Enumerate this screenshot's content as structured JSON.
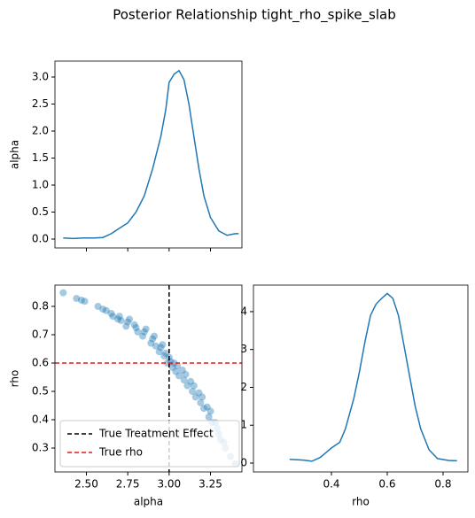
{
  "title": "Posterior Relationship tight_rho_spike_slab",
  "chart_data": [
    {
      "type": "line",
      "ylabel": "alpha",
      "color": "#1f77b4",
      "x": [
        2.36,
        2.42,
        2.48,
        2.55,
        2.6,
        2.65,
        2.7,
        2.75,
        2.8,
        2.85,
        2.9,
        2.95,
        2.98,
        3.0,
        3.03,
        3.06,
        3.09,
        3.12,
        3.15,
        3.18,
        3.21,
        3.25,
        3.3,
        3.35,
        3.4,
        3.42
      ],
      "values": [
        0.02,
        0.01,
        0.02,
        0.02,
        0.03,
        0.1,
        0.2,
        0.3,
        0.5,
        0.8,
        1.3,
        1.9,
        2.4,
        2.9,
        3.05,
        3.12,
        2.95,
        2.5,
        1.9,
        1.3,
        0.8,
        0.4,
        0.15,
        0.07,
        0.1,
        0.1
      ],
      "xlim": [
        2.31,
        3.44
      ],
      "ylim": [
        -0.164,
        3.295
      ],
      "xticks": [
        2.5,
        2.75,
        3,
        3.25
      ],
      "xticklabels": false,
      "yticks": [
        {
          "value": 0,
          "label": "0.0"
        },
        0.5,
        {
          "value": 1,
          "label": "1.0"
        },
        1.5,
        {
          "value": 2,
          "label": "2.0"
        },
        2.5,
        {
          "value": 3,
          "label": "3.0"
        }
      ]
    },
    {
      "type": "scatter",
      "xlabel": "alpha",
      "ylabel": "rho",
      "color": "#1f77b4",
      "opacity": 0.4,
      "x": [
        2.36,
        2.44,
        2.47,
        2.49,
        2.57,
        2.6,
        2.62,
        2.65,
        2.66,
        2.7,
        2.71,
        2.69,
        2.75,
        2.74,
        2.76,
        2.8,
        2.79,
        2.81,
        2.85,
        2.84,
        2.86,
        2.9,
        2.89,
        2.91,
        2.92,
        2.95,
        2.94,
        2.96,
        2.97,
        3.0,
        2.99,
        3.01,
        3.02,
        2.98,
        3.05,
        3.04,
        3.06,
        3.03,
        3.1,
        3.09,
        3.11,
        3.08,
        3.15,
        3.14,
        3.16,
        3.13,
        3.2,
        3.19,
        3.21,
        3.18,
        3.25,
        3.24,
        3.26,
        3.23,
        3.28,
        3.29,
        3.3,
        3.31,
        3.33,
        3.34,
        3.37,
        3.4
      ],
      "values": [
        0.848,
        0.828,
        0.822,
        0.818,
        0.8,
        0.79,
        0.785,
        0.775,
        0.765,
        0.765,
        0.75,
        0.755,
        0.745,
        0.73,
        0.755,
        0.725,
        0.735,
        0.71,
        0.71,
        0.695,
        0.72,
        0.685,
        0.67,
        0.695,
        0.66,
        0.655,
        0.64,
        0.665,
        0.625,
        0.62,
        0.6,
        0.605,
        0.585,
        0.635,
        0.59,
        0.57,
        0.555,
        0.6,
        0.56,
        0.54,
        0.52,
        0.575,
        0.52,
        0.5,
        0.48,
        0.535,
        0.48,
        0.46,
        0.44,
        0.495,
        0.43,
        0.41,
        0.39,
        0.445,
        0.39,
        0.37,
        0.35,
        0.33,
        0.32,
        0.3,
        0.27,
        0.245
      ],
      "xlim": [
        2.31,
        3.44
      ],
      "ylim": [
        0.2156,
        0.875
      ],
      "xticks": [
        {
          "value": 2.5,
          "label": "2.50"
        },
        2.75,
        {
          "value": 3,
          "label": "3.00"
        },
        3.25
      ],
      "yticks": [
        0.3,
        0.4,
        0.5,
        0.6,
        0.7,
        0.8
      ],
      "reference_lines": [
        {
          "name": "True Treatment Effect",
          "axis": "x",
          "value": 3.0,
          "color": "#000000"
        },
        {
          "name": "True rho",
          "axis": "y",
          "value": 0.6,
          "color": "#e31a1c"
        }
      ],
      "legend": "lower left"
    },
    {
      "type": "line",
      "xlabel": "rho",
      "color": "#1f77b4",
      "x": [
        0.25,
        0.3,
        0.33,
        0.36,
        0.4,
        0.43,
        0.45,
        0.48,
        0.5,
        0.52,
        0.54,
        0.56,
        0.58,
        0.6,
        0.62,
        0.64,
        0.66,
        0.68,
        0.7,
        0.72,
        0.75,
        0.78,
        0.82,
        0.85
      ],
      "values": [
        0.1,
        0.08,
        0.05,
        0.15,
        0.4,
        0.55,
        0.9,
        1.7,
        2.4,
        3.2,
        3.9,
        4.2,
        4.35,
        4.48,
        4.35,
        3.9,
        3.1,
        2.3,
        1.5,
        0.9,
        0.35,
        0.12,
        0.07,
        0.06
      ],
      "xlim": [
        0.1206,
        0.889
      ],
      "ylim": [
        -0.234,
        4.7
      ],
      "xticks": [
        0.4,
        0.6,
        0.8
      ],
      "yticks": [
        0,
        1,
        2,
        3,
        4
      ]
    }
  ]
}
